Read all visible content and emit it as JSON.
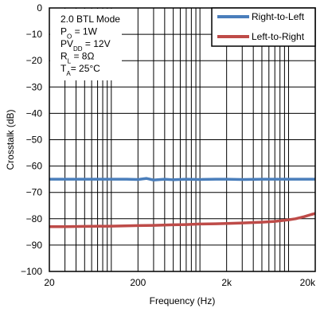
{
  "chart_data": {
    "type": "line",
    "title": "",
    "xlabel": "Frequency (Hz)",
    "ylabel": "Crosstalk (dB)",
    "xscale": "log",
    "xlim": [
      20,
      20000
    ],
    "ylim": [
      -100,
      0
    ],
    "x_ticks": [
      20,
      200,
      2000,
      20000
    ],
    "x_tick_labels": [
      "20",
      "200",
      "2k",
      "20k"
    ],
    "y_ticks": [
      0,
      -10,
      -20,
      -30,
      -40,
      -50,
      -60,
      -70,
      -80,
      -90,
      -100
    ],
    "y_tick_labels": [
      "0",
      "−10",
      "−20",
      "−30",
      "−40",
      "−50",
      "−60",
      "−70",
      "−80",
      "−90",
      "−100"
    ],
    "grid": true,
    "legend_position": "top-right",
    "annotation_lines": [
      {
        "main": "2.0 BTL Mode",
        "sub": "",
        "tail": ""
      },
      {
        "main": "P",
        "sub": "O",
        "tail": " = 1W"
      },
      {
        "main": "PV",
        "sub": "DD",
        "tail": " = 12V"
      },
      {
        "main": "R",
        "sub": "L",
        "tail": " = 8Ω"
      },
      {
        "main": "T",
        "sub": "A",
        "tail": "= 25°C"
      }
    ],
    "series": [
      {
        "name": "Right-to-Left",
        "color": "#4a7ebb",
        "x": [
          20,
          30,
          50,
          100,
          150,
          200,
          250,
          300,
          400,
          500,
          700,
          1000,
          1500,
          2000,
          3000,
          5000,
          7000,
          10000,
          15000,
          20000
        ],
        "y": [
          -65,
          -65,
          -65,
          -65,
          -65,
          -65.1,
          -64.7,
          -65.3,
          -65,
          -65.2,
          -65,
          -65.1,
          -65,
          -65,
          -65.1,
          -65,
          -65,
          -65,
          -65,
          -65
        ]
      },
      {
        "name": "Left-to-Right",
        "color": "#be4b48",
        "x": [
          20,
          30,
          50,
          100,
          200,
          300,
          500,
          700,
          1000,
          1500,
          2000,
          3000,
          5000,
          7000,
          10000,
          12000,
          15000,
          18000,
          20000
        ],
        "y": [
          -83,
          -83,
          -82.9,
          -82.8,
          -82.6,
          -82.5,
          -82.3,
          -82.2,
          -82,
          -81.9,
          -81.8,
          -81.6,
          -81.3,
          -81,
          -80.4,
          -80,
          -79.2,
          -78.4,
          -78
        ]
      }
    ]
  }
}
